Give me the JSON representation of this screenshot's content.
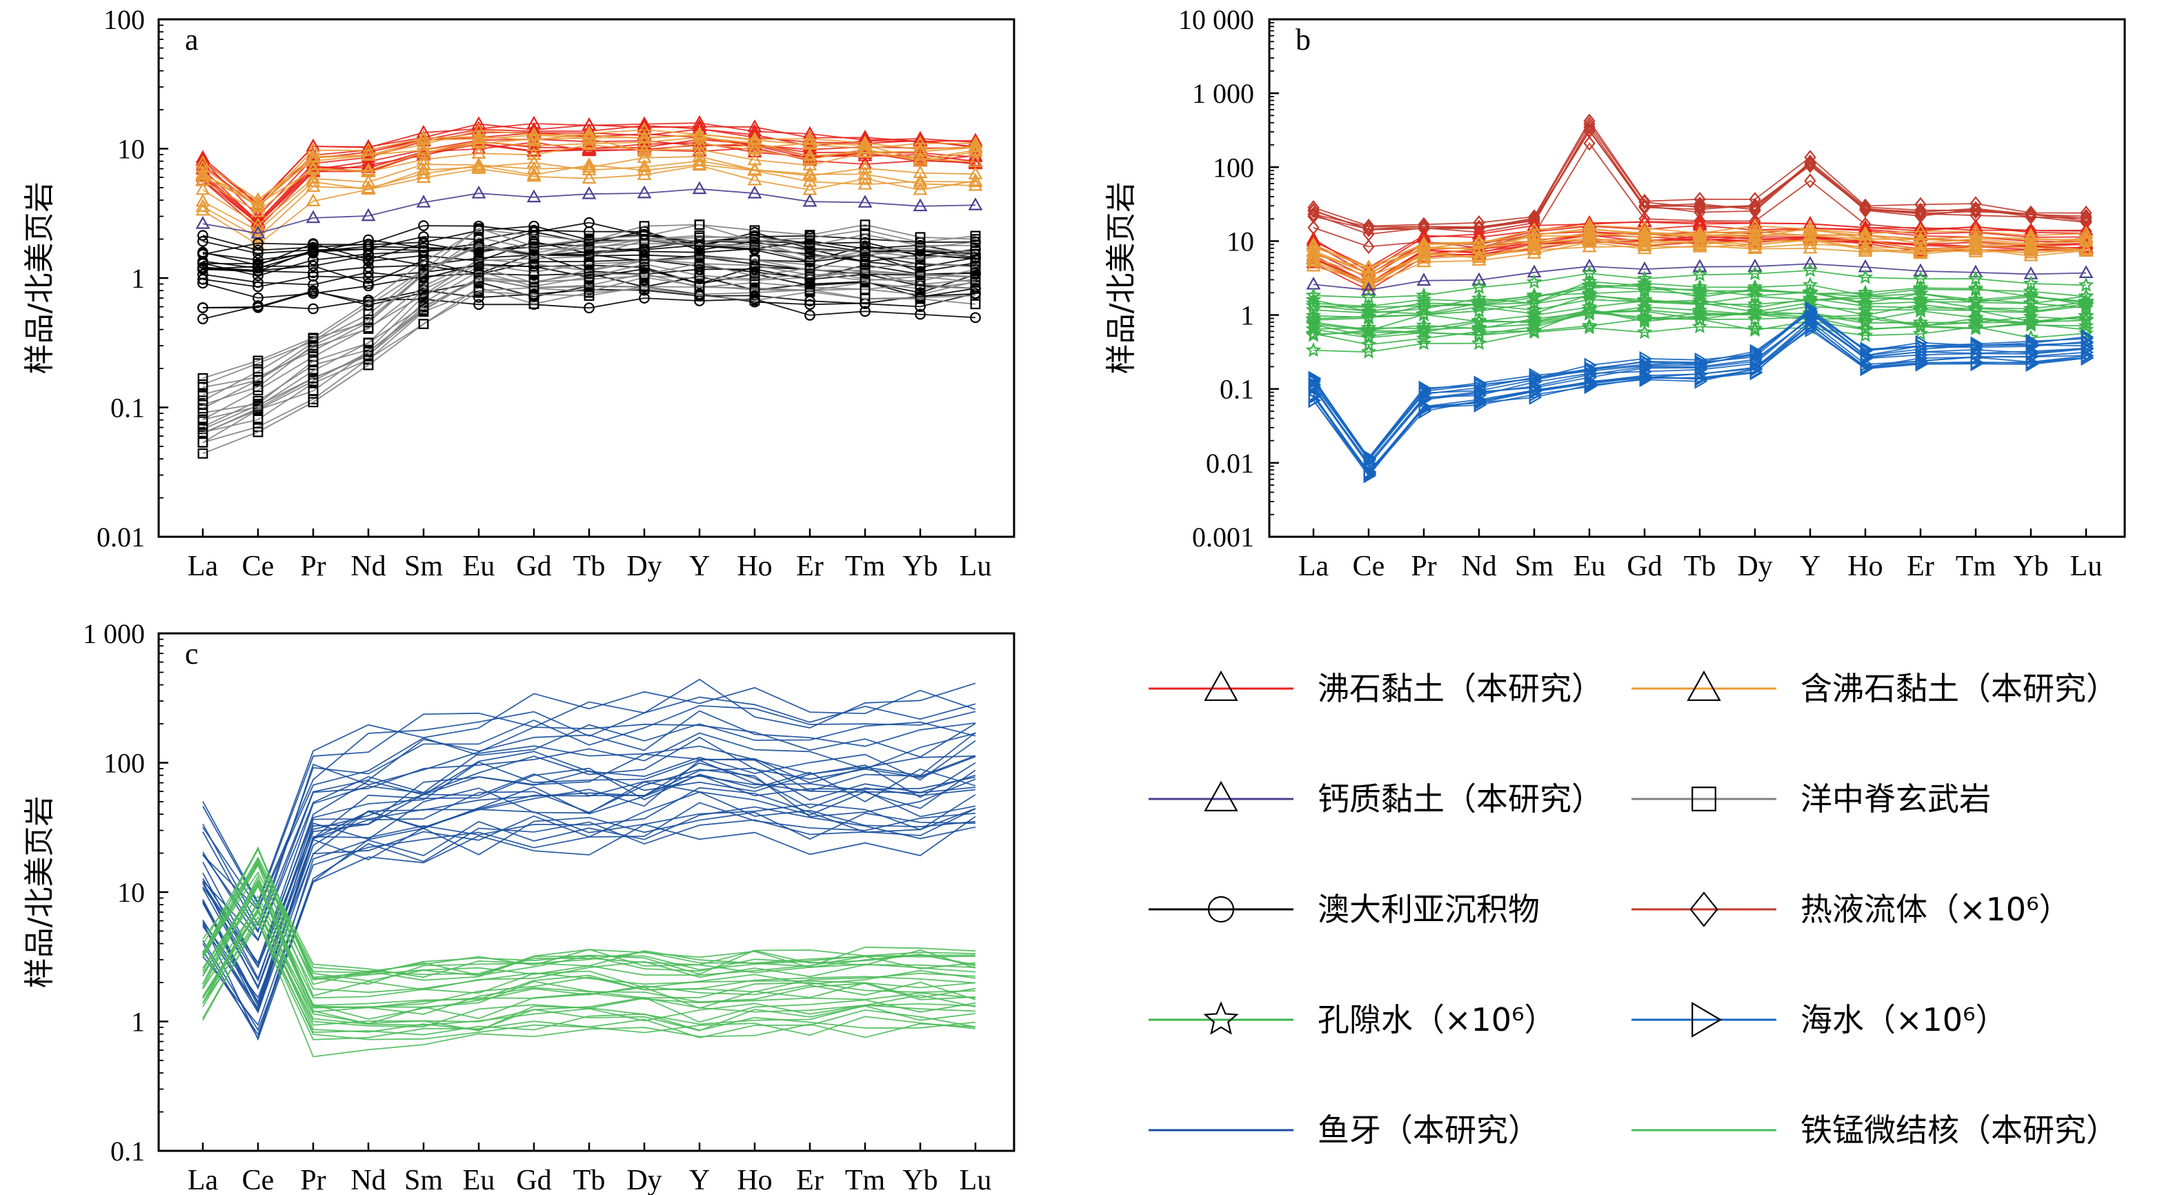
{
  "categories": [
    "La",
    "Ce",
    "Pr",
    "Nd",
    "Sm",
    "Eu",
    "Gd",
    "Tb",
    "Dy",
    "Y",
    "Ho",
    "Er",
    "Tm",
    "Yb",
    "Lu"
  ],
  "colors": {
    "zeolite_clay": "#e8221b",
    "zeolite_bearing_clay": "#e89a35",
    "calcareous_clay": "#4a3f8f",
    "morb": "#808080",
    "australian_sediment": "#000000",
    "hydrothermal": "#c0392b",
    "pore_water": "#3cb44b",
    "seawater": "#1565c0",
    "fish_teeth": "#1a4f9c",
    "femn_micronodule": "#4cbb5a"
  },
  "chart_data": [
    {
      "panel": "a",
      "type": "line",
      "ylabel": "样品/北美页岩",
      "yscale": "log",
      "ylim": [
        0.01,
        100
      ],
      "yticks": [
        "0.01",
        "0.1",
        "1",
        "10",
        "100"
      ],
      "series": [
        {
          "name": "沸石黏土（本研究）",
          "values": [
            7.5,
            3.2,
            8.5,
            8.8,
            11.5,
            13.5,
            13.0,
            13.0,
            13.0,
            13.5,
            12.5,
            11.0,
            11.0,
            10.5,
            10.5
          ],
          "spread": 0.16,
          "count": 10,
          "color": "zeolite_clay",
          "marker": "triangle"
        },
        {
          "name": "含沸石黏土（本研究）",
          "values": [
            5.5,
            3.0,
            6.5,
            6.8,
            8.5,
            10.0,
            9.5,
            9.5,
            9.5,
            10.0,
            9.0,
            8.0,
            8.0,
            7.5,
            7.5
          ],
          "spread": 0.22,
          "count": 10,
          "color": "zeolite_bearing_clay",
          "marker": "triangle"
        },
        {
          "name": "钙质黏土（本研究）",
          "values": [
            2.6,
            2.2,
            2.9,
            3.0,
            3.8,
            4.5,
            4.2,
            4.5,
            4.5,
            4.9,
            4.5,
            3.9,
            3.8,
            3.6,
            3.7
          ],
          "spread": 0.02,
          "count": 1,
          "color": "calcareous_clay",
          "marker": "triangle"
        },
        {
          "name": "澳大利亚沉积物",
          "values": [
            1.05,
            1.0,
            1.1,
            1.1,
            1.2,
            1.25,
            1.3,
            1.25,
            1.25,
            1.2,
            1.2,
            1.1,
            1.1,
            1.05,
            1.05
          ],
          "spread": 0.3,
          "count": 18,
          "color": "australian_sediment",
          "marker": "circle"
        },
        {
          "name": "洋中脊玄武岩",
          "values": [
            0.09,
            0.13,
            0.22,
            0.37,
            0.8,
            1.3,
            1.2,
            1.3,
            1.45,
            1.4,
            1.35,
            1.3,
            1.35,
            1.3,
            1.25
          ],
          "spread": 0.25,
          "count": 18,
          "color": "morb",
          "marker": "square"
        }
      ]
    },
    {
      "panel": "b",
      "type": "line",
      "ylabel": "样品/北美页岩",
      "yscale": "log",
      "ylim": [
        0.001,
        10000
      ],
      "yticks": [
        "0.001",
        "0.01",
        "0.1",
        "1",
        "10",
        "100",
        "1 000",
        "10 000"
      ],
      "series": [
        {
          "name": "热液流体（×10⁶）",
          "values": [
            22,
            13,
            13,
            13,
            18,
            300,
            28,
            25,
            25,
            100,
            25,
            22,
            22,
            20,
            18
          ],
          "spread": 0.2,
          "count": 7,
          "color": "hydrothermal",
          "marker": "diamond"
        },
        {
          "name": "沸石黏土（本研究）",
          "values": [
            7.5,
            3.2,
            8.5,
            8.8,
            11.5,
            13.5,
            13.0,
            13.0,
            13.0,
            13.5,
            12.5,
            11.0,
            11.0,
            10.5,
            10.5
          ],
          "spread": 0.16,
          "count": 10,
          "color": "zeolite_clay",
          "marker": "triangle"
        },
        {
          "name": "含沸石黏土（本研究）",
          "values": [
            5.5,
            3.0,
            6.5,
            6.8,
            8.5,
            10.0,
            9.5,
            9.5,
            9.5,
            10.0,
            9.0,
            8.0,
            8.0,
            7.5,
            7.5
          ],
          "spread": 0.22,
          "count": 10,
          "color": "zeolite_bearing_clay",
          "marker": "triangle"
        },
        {
          "name": "钙质黏土（本研究）",
          "values": [
            2.6,
            2.2,
            2.9,
            3.0,
            3.8,
            4.5,
            4.2,
            4.5,
            4.5,
            4.9,
            4.5,
            3.9,
            3.8,
            3.6,
            3.7
          ],
          "spread": 0.02,
          "count": 1,
          "color": "calcareous_clay",
          "marker": "triangle"
        },
        {
          "name": "孔隙水（×10⁶）",
          "values": [
            0.9,
            0.8,
            1.0,
            1.0,
            1.2,
            1.6,
            1.5,
            1.4,
            1.4,
            1.5,
            1.3,
            1.3,
            1.3,
            1.2,
            1.2
          ],
          "spread": 0.35,
          "count": 18,
          "color": "pore_water",
          "marker": "star"
        },
        {
          "name": "海水（×10⁶）",
          "values": [
            0.1,
            0.009,
            0.07,
            0.085,
            0.11,
            0.15,
            0.18,
            0.18,
            0.23,
            0.9,
            0.25,
            0.3,
            0.31,
            0.31,
            0.35
          ],
          "spread": 0.15,
          "count": 14,
          "color": "seawater",
          "marker": "triangle-right"
        }
      ]
    },
    {
      "panel": "c",
      "type": "line",
      "ylabel": "样品/北美页岩",
      "yscale": "log",
      "ylim": [
        0.1,
        1000
      ],
      "yticks": [
        "0.1",
        "1",
        "10",
        "100",
        "1 000"
      ],
      "series": [
        {
          "name": "鱼牙（本研究）",
          "values": [
            12,
            2.5,
            40,
            50,
            60,
            70,
            80,
            80,
            85,
            110,
            90,
            80,
            80,
            80,
            100
          ],
          "spread": 0.55,
          "count": 30,
          "color": "fish_teeth",
          "marker": "none"
        },
        {
          "name": "铁锰微结核（本研究）",
          "values": [
            2.0,
            10,
            1.2,
            1.2,
            1.3,
            1.4,
            1.6,
            1.6,
            1.6,
            1.4,
            1.6,
            1.6,
            1.7,
            1.7,
            1.6
          ],
          "spread": 0.3,
          "count": 28,
          "color": "femn_micronodule",
          "marker": "none"
        }
      ]
    }
  ],
  "panel_letters": {
    "a": "a",
    "b": "b",
    "c": "c"
  },
  "legend": [
    {
      "label": "沸石黏土（本研究）",
      "color": "zeolite_clay",
      "marker": "triangle"
    },
    {
      "label": "含沸石黏土（本研究）",
      "color": "zeolite_bearing_clay",
      "marker": "triangle"
    },
    {
      "label": "钙质黏土（本研究）",
      "color": "calcareous_clay",
      "marker": "triangle"
    },
    {
      "label": "洋中脊玄武岩",
      "color": "morb",
      "marker": "square"
    },
    {
      "label": "澳大利亚沉积物",
      "color": "australian_sediment",
      "marker": "circle"
    },
    {
      "label": "热液流体（×10⁶）",
      "color": "hydrothermal",
      "marker": "diamond"
    },
    {
      "label": "孔隙水（×10⁶）",
      "color": "pore_water",
      "marker": "star"
    },
    {
      "label": "海水（×10⁶）",
      "color": "seawater",
      "marker": "triangle-right"
    },
    {
      "label": "鱼牙（本研究）",
      "color": "fish_teeth",
      "marker": "none"
    },
    {
      "label": "铁锰微结核（本研究）",
      "color": "femn_micronodule",
      "marker": "none"
    }
  ]
}
